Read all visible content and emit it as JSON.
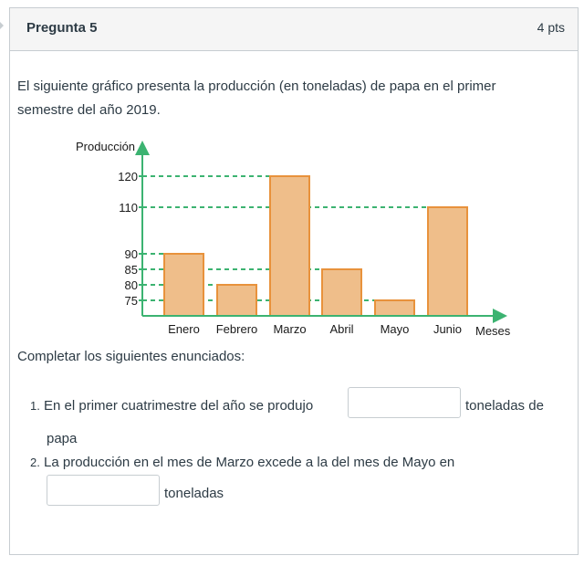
{
  "question": {
    "title": "Pregunta 5",
    "points": "4 pts",
    "text": "El siguiente gráfico presenta la producción (en toneladas) de papa en el primer semestre del año 2019.",
    "complete_prompt": "Completar los siguientes enunciados:",
    "items": [
      {
        "number": "1.",
        "before": "En el primer cuatrimestre del año se produjo",
        "after_1": "toneladas de",
        "after_2": "papa",
        "value": ""
      },
      {
        "number": "2.",
        "before": "La producción en el mes de Marzo excede a la del mes de Mayo en",
        "after": "toneladas",
        "value": ""
      }
    ]
  },
  "chart_data": {
    "type": "bar",
    "ylabel": "Producción",
    "xlabel": "Meses",
    "categories": [
      "Enero",
      "Febrero",
      "Marzo",
      "Abril",
      "Mayo",
      "Junio"
    ],
    "values": [
      90,
      80,
      120,
      85,
      75,
      110
    ],
    "y_ticks": [
      75,
      80,
      85,
      90,
      110,
      120
    ],
    "grid": "dashed reference lines at each bar height",
    "colors": {
      "bar_fill": "#efbe8a",
      "bar_stroke": "#e8923c",
      "axis": "#3cb371",
      "gridline": "#3cb371"
    }
  }
}
